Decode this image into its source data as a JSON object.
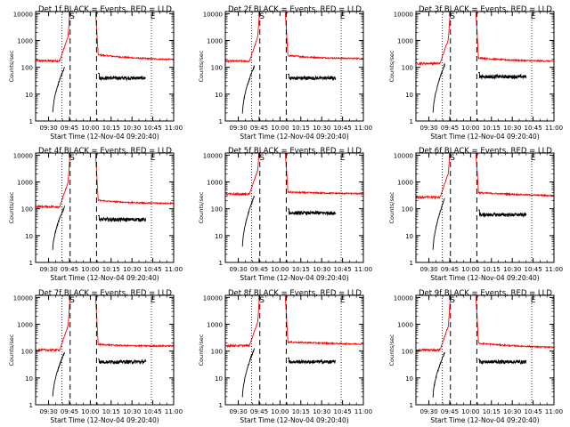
{
  "figure": {
    "background": "#ffffff",
    "axis_color": "#000000"
  },
  "chart_data": [
    {
      "type": "line",
      "title": "Det 1f BLACK = Events, RED = LLD",
      "ylabel": "Counts/sec",
      "xlabel": "Start Time (12-Nov-04 09:20:40)",
      "x_ticks": [
        "09:30",
        "09:45",
        "10:00",
        "10:15",
        "10:30",
        "10:45",
        "11:00"
      ],
      "y_ticks": [
        "1",
        "10",
        "100",
        "1000",
        "10000"
      ],
      "xlim": [
        "09:20:40",
        "11:00:00"
      ],
      "ylim": [
        1,
        12000
      ],
      "yscale": "log",
      "grid": false,
      "markers": {
        "S": "09:47",
        "E": "10:45"
      },
      "vlines_dashed": [
        "09:45:30",
        "10:04:30"
      ],
      "vlines_dotted": [
        "09:39:30",
        "10:44:00"
      ],
      "series": [
        {
          "color": "#ff0000",
          "baseline": 175,
          "baseline_late": 175,
          "baseline_end": 180,
          "peak_start": "09:44:00",
          "peak_end": "10:04:30",
          "post_level": 300
        },
        {
          "color": "#000000",
          "segment1": [
            "09:33:00",
            "09:41:30"
          ],
          "seg1_levels": [
            2,
            100
          ],
          "segment2": [
            "10:05:30",
            "10:40:00"
          ],
          "seg2_level": 40,
          "seg2_spike": 60
        }
      ]
    },
    {
      "type": "line",
      "title": "Det 2f BLACK = Events, RED = LLD",
      "ylabel": "Counts/sec",
      "xlabel": "Start Time (12-Nov-04 09:20:40)",
      "x_ticks": [
        "09:30",
        "09:45",
        "10:00",
        "10:15",
        "10:30",
        "10:45",
        "11:00"
      ],
      "y_ticks": [
        "1",
        "10",
        "100",
        "1000",
        "10000"
      ],
      "xlim": [
        "09:20:40",
        "11:00:00"
      ],
      "ylim": [
        1,
        12000
      ],
      "yscale": "log",
      "grid": false,
      "markers": {
        "S": "09:47",
        "E": "10:45"
      },
      "vlines_dashed": [
        "09:45:30",
        "10:04:30"
      ],
      "vlines_dotted": [
        "09:39:30",
        "10:44:00"
      ],
      "series": [
        {
          "color": "#ff0000",
          "baseline": 170,
          "baseline_late": 180,
          "baseline_end": 200,
          "peak_start": "09:44:00",
          "peak_end": "10:04:30",
          "post_level": 280
        },
        {
          "color": "#000000",
          "segment1": [
            "09:33:00",
            "09:41:30"
          ],
          "seg1_levels": [
            2,
            110
          ],
          "segment2": [
            "10:05:30",
            "10:40:00"
          ],
          "seg2_level": 40,
          "seg2_spike": 55
        }
      ]
    },
    {
      "type": "line",
      "title": "Det 3f BLACK = Events, RED = LLD",
      "ylabel": "Counts/sec",
      "xlabel": "Start Time (12-Nov-04 09:20:40)",
      "x_ticks": [
        "09:30",
        "09:45",
        "10:00",
        "10:15",
        "10:30",
        "10:45",
        "11:00"
      ],
      "y_ticks": [
        "1",
        "10",
        "100",
        "1000",
        "10000"
      ],
      "xlim": [
        "09:20:40",
        "11:00:00"
      ],
      "ylim": [
        1,
        12000
      ],
      "yscale": "log",
      "grid": false,
      "markers": {
        "S": "09:47",
        "E": "10:45"
      },
      "vlines_dashed": [
        "09:45:30",
        "10:04:30"
      ],
      "vlines_dotted": [
        "09:39:30",
        "10:44:00"
      ],
      "series": [
        {
          "color": "#ff0000",
          "baseline": 140,
          "baseline_late": 150,
          "baseline_end": 160,
          "peak_start": "09:44:00",
          "peak_end": "10:04:30",
          "post_level": 230
        },
        {
          "color": "#000000",
          "segment1": [
            "09:33:00",
            "09:41:30"
          ],
          "seg1_levels": [
            2,
            130
          ],
          "segment2": [
            "10:05:30",
            "10:40:00"
          ],
          "seg2_level": 45,
          "seg2_spike": 65
        }
      ]
    },
    {
      "type": "line",
      "title": "Det 4f BLACK = Events, RED = LLD",
      "ylabel": "Counts/sec",
      "xlabel": "Start Time (12-Nov-04 09:20:40)",
      "x_ticks": [
        "09:30",
        "09:45",
        "10:00",
        "10:15",
        "10:30",
        "10:45",
        "11:00"
      ],
      "y_ticks": [
        "1",
        "10",
        "100",
        "1000",
        "10000"
      ],
      "xlim": [
        "09:20:40",
        "11:00:00"
      ],
      "ylim": [
        1,
        12000
      ],
      "yscale": "log",
      "grid": false,
      "markers": {
        "S": "09:47",
        "E": "10:45"
      },
      "vlines_dashed": [
        "09:45:30",
        "10:04:30"
      ],
      "vlines_dotted": [
        "09:39:30",
        "10:44:00"
      ],
      "series": [
        {
          "color": "#ff0000",
          "baseline": 120,
          "baseline_late": 130,
          "baseline_end": 150,
          "peak_start": "09:44:00",
          "peak_end": "10:04:30",
          "post_level": 210
        },
        {
          "color": "#000000",
          "segment1": [
            "09:33:00",
            "09:41:30"
          ],
          "seg1_levels": [
            3,
            120
          ],
          "segment2": [
            "10:05:30",
            "10:40:00"
          ],
          "seg2_level": 40,
          "seg2_spike": 55
        }
      ]
    },
    {
      "type": "line",
      "title": "Det 5f BLACK = Events, RED = LLD",
      "ylabel": "Counts/sec",
      "xlabel": "Start Time (12-Nov-04 09:20:40)",
      "x_ticks": [
        "09:30",
        "09:45",
        "10:00",
        "10:15",
        "10:30",
        "10:45",
        "11:00"
      ],
      "y_ticks": [
        "1",
        "10",
        "100",
        "1000",
        "10000"
      ],
      "xlim": [
        "09:20:40",
        "11:00:00"
      ],
      "ylim": [
        1,
        12000
      ],
      "yscale": "log",
      "grid": false,
      "markers": {
        "S": "09:47",
        "E": "10:45"
      },
      "vlines_dashed": [
        "09:45:30",
        "10:04:30"
      ],
      "vlines_dotted": [
        "09:39:30",
        "10:44:00"
      ],
      "series": [
        {
          "color": "#ff0000",
          "baseline": 350,
          "baseline_late": 380,
          "baseline_end": 360,
          "peak_start": "09:44:00",
          "peak_end": "10:04:30",
          "post_level": 420
        },
        {
          "color": "#000000",
          "segment1": [
            "09:33:00",
            "09:41:30"
          ],
          "seg1_levels": [
            4,
            300
          ],
          "segment2": [
            "10:05:30",
            "10:40:00"
          ],
          "seg2_level": 70,
          "seg2_spike": 100
        }
      ]
    },
    {
      "type": "line",
      "title": "Det 6f BLACK = Events, RED = LLD",
      "ylabel": "Counts/sec",
      "xlabel": "Start Time (12-Nov-04 09:20:40)",
      "x_ticks": [
        "09:30",
        "09:45",
        "10:00",
        "10:15",
        "10:30",
        "10:45",
        "11:00"
      ],
      "y_ticks": [
        "1",
        "10",
        "100",
        "1000",
        "10000"
      ],
      "xlim": [
        "09:20:40",
        "11:00:00"
      ],
      "ylim": [
        1,
        12000
      ],
      "yscale": "log",
      "grid": false,
      "markers": {
        "S": "09:47",
        "E": "10:45"
      },
      "vlines_dashed": [
        "09:45:30",
        "10:04:30"
      ],
      "vlines_dotted": [
        "09:39:30",
        "10:44:00"
      ],
      "series": [
        {
          "color": "#ff0000",
          "baseline": 270,
          "baseline_late": 350,
          "baseline_end": 300,
          "peak_start": "09:44:00",
          "peak_end": "10:04:30",
          "post_level": 400
        },
        {
          "color": "#000000",
          "segment1": [
            "09:33:00",
            "09:41:30"
          ],
          "seg1_levels": [
            3,
            250
          ],
          "segment2": [
            "10:05:30",
            "10:40:00"
          ],
          "seg2_level": 60,
          "seg2_spike": 90
        }
      ]
    },
    {
      "type": "line",
      "title": "Det 7f BLACK = Events, RED = LLD",
      "ylabel": "Counts/sec",
      "xlabel": "Start Time (12-Nov-04 09:20:40)",
      "x_ticks": [
        "09:30",
        "09:45",
        "10:00",
        "10:15",
        "10:30",
        "10:45",
        "11:00"
      ],
      "y_ticks": [
        "1",
        "10",
        "100",
        "1000",
        "10000"
      ],
      "xlim": [
        "09:20:40",
        "11:00:00"
      ],
      "ylim": [
        1,
        12000
      ],
      "yscale": "log",
      "grid": false,
      "markers": {
        "S": "09:47",
        "E": "10:45"
      },
      "vlines_dashed": [
        "09:45:30",
        "10:04:30"
      ],
      "vlines_dotted": [
        "09:39:30",
        "10:44:00"
      ],
      "series": [
        {
          "color": "#ff0000",
          "baseline": 110,
          "baseline_late": 130,
          "baseline_end": 150,
          "peak_start": "09:44:00",
          "peak_end": "10:04:30",
          "post_level": 180
        },
        {
          "color": "#000000",
          "segment1": [
            "09:33:00",
            "09:41:30"
          ],
          "seg1_levels": [
            2,
            90
          ],
          "segment2": [
            "10:05:30",
            "10:40:00"
          ],
          "seg2_level": 40,
          "seg2_spike": 50
        }
      ]
    },
    {
      "type": "line",
      "title": "Det 8f BLACK = Events, RED = LLD",
      "ylabel": "Counts/sec",
      "xlabel": "Start Time (12-Nov-04 09:20:40)",
      "x_ticks": [
        "09:30",
        "09:45",
        "10:00",
        "10:15",
        "10:30",
        "10:45",
        "11:00"
      ],
      "y_ticks": [
        "1",
        "10",
        "100",
        "1000",
        "10000"
      ],
      "xlim": [
        "09:20:40",
        "11:00:00"
      ],
      "ylim": [
        1,
        12000
      ],
      "yscale": "log",
      "grid": false,
      "markers": {
        "S": "09:47",
        "E": "10:45"
      },
      "vlines_dashed": [
        "09:45:30",
        "10:04:30"
      ],
      "vlines_dotted": [
        "09:39:30",
        "10:44:00"
      ],
      "series": [
        {
          "color": "#ff0000",
          "baseline": 160,
          "baseline_late": 200,
          "baseline_end": 180,
          "peak_start": "09:44:00",
          "peak_end": "10:04:30",
          "post_level": 220
        },
        {
          "color": "#000000",
          "segment1": [
            "09:33:00",
            "09:41:30"
          ],
          "seg1_levels": [
            2,
            120
          ],
          "segment2": [
            "10:05:30",
            "10:40:00"
          ],
          "seg2_level": 40,
          "seg2_spike": 55
        }
      ]
    },
    {
      "type": "line",
      "title": "Det 9f BLACK = Events, RED = LLD",
      "ylabel": "Counts/sec",
      "xlabel": "Start Time (12-Nov-04 09:20:40)",
      "x_ticks": [
        "09:30",
        "09:45",
        "10:00",
        "10:15",
        "10:30",
        "10:45",
        "11:00"
      ],
      "y_ticks": [
        "1",
        "10",
        "100",
        "1000",
        "10000"
      ],
      "xlim": [
        "09:20:40",
        "11:00:00"
      ],
      "ylim": [
        1,
        12000
      ],
      "yscale": "log",
      "grid": false,
      "markers": {
        "S": "09:47",
        "E": "10:45"
      },
      "vlines_dashed": [
        "09:45:30",
        "10:04:30"
      ],
      "vlines_dotted": [
        "09:39:30",
        "10:44:00"
      ],
      "series": [
        {
          "color": "#ff0000",
          "baseline": 110,
          "baseline_late": 140,
          "baseline_end": 130,
          "peak_start": "09:44:00",
          "peak_end": "10:04:30",
          "post_level": 200
        },
        {
          "color": "#000000",
          "segment1": [
            "09:33:00",
            "09:41:30"
          ],
          "seg1_levels": [
            2,
            90
          ],
          "segment2": [
            "10:05:30",
            "10:40:00"
          ],
          "seg2_level": 40,
          "seg2_spike": 50
        }
      ]
    }
  ]
}
